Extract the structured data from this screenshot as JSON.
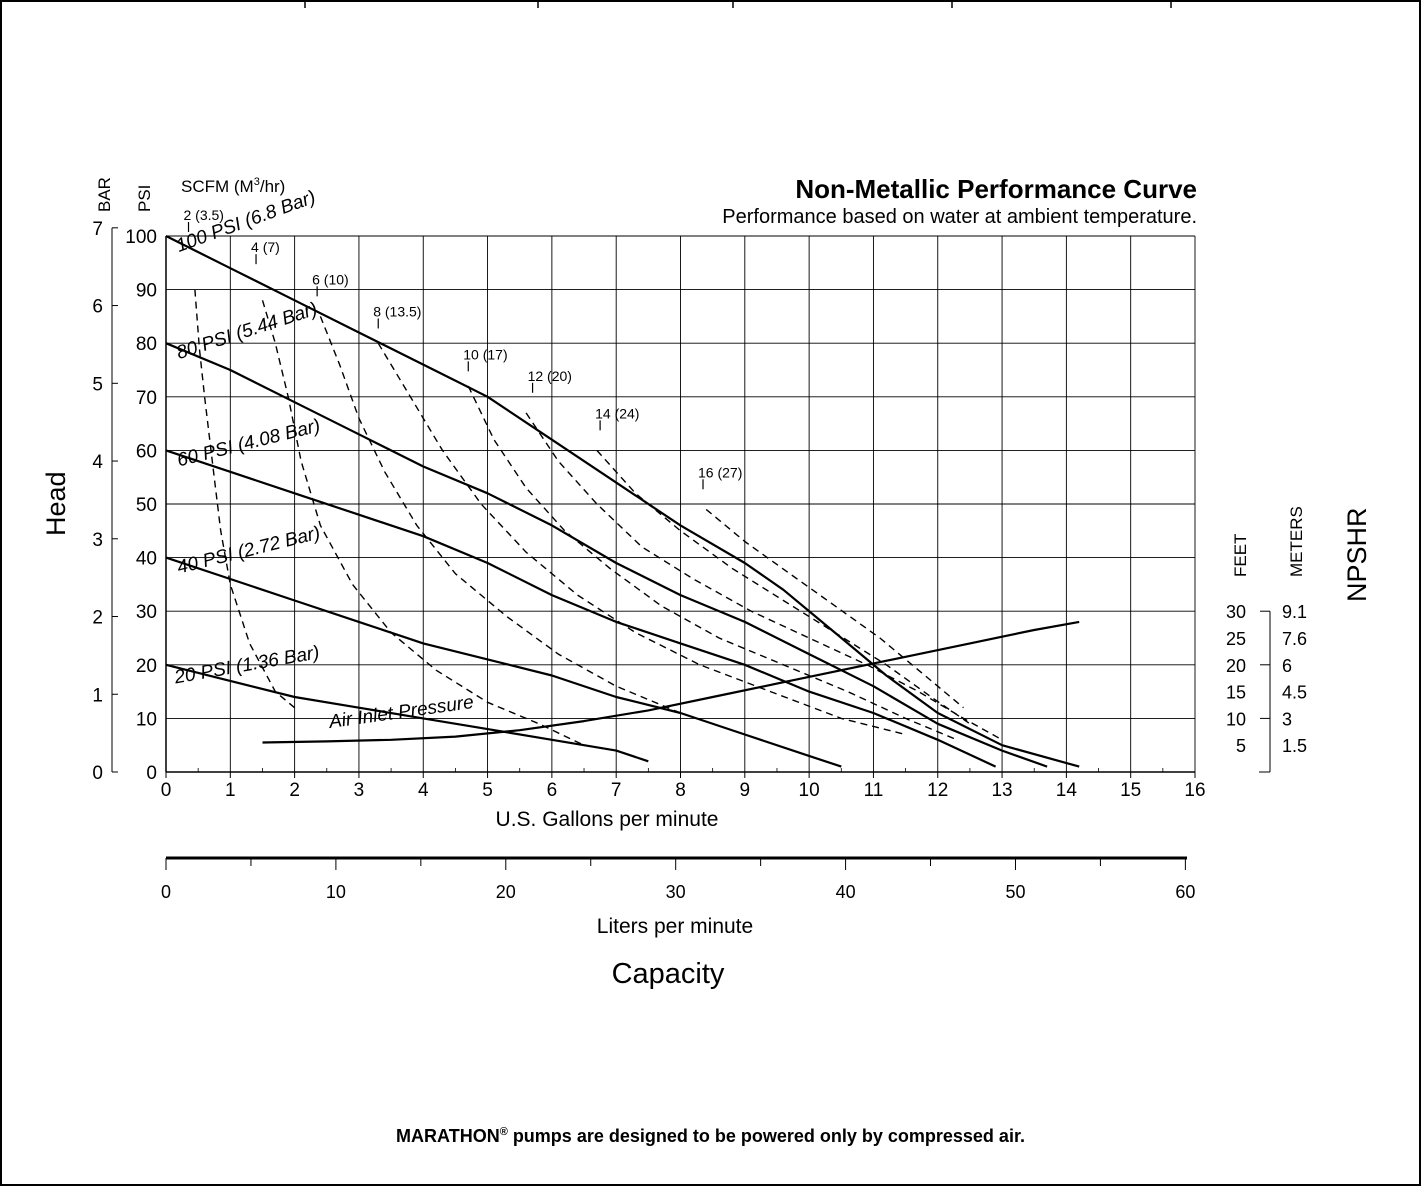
{
  "chart_data": {
    "type": "line",
    "title": "Non-Metallic Performance Curve",
    "subtitle": "Performance based on water at ambient temperature.",
    "xlabel": "U.S. Gallons per minute",
    "x2label": "Liters per minute",
    "capacity_label": "Capacity",
    "ylabel": "Head",
    "y_unit_bar": "BAR",
    "y_unit_psi": "PSI",
    "scfm_label": "SCFM (M",
    "scfm_sup": "3",
    "scfm_suffix": "/hr)",
    "npshr_label": "NPSHR",
    "npshr_feet_label": "FEET",
    "npshr_meters_label": "METERS",
    "xlim": [
      0,
      16
    ],
    "ylim": [
      0,
      100
    ],
    "grid": true,
    "x_ticks": [
      "0",
      "1",
      "2",
      "3",
      "4",
      "5",
      "6",
      "7",
      "8",
      "9",
      "10",
      "11",
      "12",
      "13",
      "14",
      "15",
      "16"
    ],
    "psi_ticks": [
      "0",
      "10",
      "20",
      "30",
      "40",
      "50",
      "60",
      "70",
      "80",
      "90",
      "100"
    ],
    "bar_ticks": [
      "0",
      "1",
      "2",
      "3",
      "4",
      "5",
      "6",
      "7"
    ],
    "lpm_ticks": [
      "0",
      "10",
      "20",
      "30",
      "40",
      "50",
      "60"
    ],
    "npshr_feet_ticks": [
      "5",
      "10",
      "15",
      "20",
      "25",
      "30"
    ],
    "npshr_meter_ticks": [
      "1.5",
      "3",
      "4.5",
      "6",
      "7.6",
      "9.1"
    ],
    "series": [
      {
        "name": "100 PSI (6.8 Bar)",
        "style": "solid",
        "x": [
          0,
          1,
          2,
          3,
          4,
          5,
          6,
          7,
          8,
          9,
          9.6,
          10.4,
          11.2,
          12,
          13,
          14.2
        ],
        "y": [
          100,
          94,
          88,
          82,
          76,
          70,
          62,
          54,
          46,
          39,
          34,
          26,
          18,
          11,
          5,
          1
        ]
      },
      {
        "name": "80 PSI (5.44 Bar)",
        "style": "solid",
        "x": [
          0,
          1,
          2,
          3,
          4,
          5,
          6,
          7,
          8,
          9,
          10,
          11,
          12,
          13,
          13.7
        ],
        "y": [
          80,
          75,
          69,
          63,
          57,
          52,
          46,
          39,
          33,
          28,
          22,
          16,
          9,
          4,
          1
        ]
      },
      {
        "name": "60 PSI (4.08 Bar)",
        "style": "solid",
        "x": [
          0,
          1,
          2,
          3,
          4,
          5,
          6,
          7,
          8,
          9,
          10,
          11,
          12,
          12.9
        ],
        "y": [
          60,
          56,
          52,
          48,
          44,
          39,
          33,
          28,
          24,
          20,
          15,
          11,
          6,
          1
        ]
      },
      {
        "name": "40 PSI (2.72 Bar)",
        "style": "solid",
        "x": [
          0,
          1,
          2,
          3,
          4,
          5,
          6,
          7,
          8,
          9,
          10,
          10.5
        ],
        "y": [
          40,
          36,
          32,
          28,
          24,
          21,
          18,
          14,
          11,
          7,
          3,
          1
        ]
      },
      {
        "name": "20 PSI (1.36 Bar)",
        "style": "solid",
        "x": [
          0,
          1,
          2,
          3,
          4,
          5,
          6,
          7,
          7.5
        ],
        "y": [
          20,
          17,
          14,
          12,
          10,
          8,
          6,
          4,
          2
        ]
      },
      {
        "name": "Air Inlet Pressure",
        "style": "solid",
        "x": [
          1.5,
          2.5,
          3.5,
          4.5,
          5.5,
          6.5,
          7.5,
          8.5,
          9.5,
          10.5,
          11.5,
          12.5,
          13.5,
          14.2
        ],
        "y": [
          5.5,
          5.7,
          6,
          6.6,
          7.8,
          9.5,
          11.5,
          14,
          16.5,
          19,
          21.5,
          24,
          26.5,
          28
        ]
      },
      {
        "name": "2 (3.5)",
        "style": "dashed",
        "x": [
          0.45,
          0.52,
          0.6,
          0.75,
          0.85,
          1.0,
          1.3,
          1.7,
          2.0
        ],
        "y": [
          90,
          79,
          70,
          55,
          45,
          35,
          24,
          15,
          12
        ]
      },
      {
        "name": "4 (7)",
        "style": "dashed",
        "x": [
          1.5,
          1.7,
          1.9,
          2.1,
          2.4,
          2.9,
          3.5,
          4.2,
          5.0,
          5.8,
          6.5
        ],
        "y": [
          88,
          80,
          70,
          58,
          46,
          35,
          26,
          19,
          13,
          9,
          5
        ]
      },
      {
        "name": "6 (10)",
        "style": "dashed",
        "x": [
          2.4,
          2.7,
          3.0,
          3.4,
          3.9,
          4.5,
          5.3,
          6.1,
          7.0,
          8.0,
          9.0
        ],
        "y": [
          85,
          76,
          66,
          56,
          46,
          37,
          29,
          22,
          16,
          11,
          7
        ]
      },
      {
        "name": "8 (13.5)",
        "style": "dashed",
        "x": [
          3.3,
          3.8,
          4.3,
          4.9,
          5.6,
          6.4,
          7.3,
          8.3,
          9.4,
          10.5,
          11.5
        ],
        "y": [
          80,
          70,
          60,
          50,
          41,
          33,
          26,
          20,
          15,
          10,
          7
        ]
      },
      {
        "name": "10 (17)",
        "style": "dashed",
        "x": [
          4.7,
          5.1,
          5.6,
          6.2,
          6.9,
          7.7,
          8.6,
          9.6,
          10.6,
          11.5,
          12.3
        ],
        "y": [
          72,
          62,
          53,
          45,
          38,
          31,
          25,
          20,
          15,
          10,
          6
        ]
      },
      {
        "name": "12 (20)",
        "style": "dashed",
        "x": [
          5.6,
          6.1,
          6.7,
          7.4,
          8.2,
          9.1,
          10.0,
          10.9,
          11.7,
          12.4,
          13.0
        ],
        "y": [
          67,
          58,
          50,
          42,
          36,
          30,
          25,
          20,
          15,
          10,
          6
        ]
      },
      {
        "name": "14 (24)",
        "style": "dashed",
        "x": [
          6.7,
          7.3,
          8.0,
          8.8,
          9.6,
          10.4,
          11.2,
          11.9,
          12.5
        ],
        "y": [
          60,
          52,
          45,
          38,
          32,
          26,
          20,
          14,
          9
        ]
      },
      {
        "name": "16 (27)",
        "style": "dashed",
        "x": [
          8.4,
          9.0,
          9.7,
          10.4,
          11.1,
          11.8,
          12.4
        ],
        "y": [
          49,
          43,
          37,
          31,
          25,
          18,
          12
        ]
      }
    ],
    "scfm_labels": [
      {
        "text": "2 (3.5)",
        "x": 0.35,
        "y": 100
      },
      {
        "text": "4 (7)",
        "x": 1.4,
        "y": 94
      },
      {
        "text": "6 (10)",
        "x": 2.35,
        "y": 88
      },
      {
        "text": "8 (13.5)",
        "x": 3.3,
        "y": 82
      },
      {
        "text": "10 (17)",
        "x": 4.7,
        "y": 74
      },
      {
        "text": "12 (20)",
        "x": 5.7,
        "y": 70
      },
      {
        "text": "14 (24)",
        "x": 6.75,
        "y": 63
      },
      {
        "text": "16 (27)",
        "x": 8.35,
        "y": 52
      }
    ],
    "psi_curve_labels": [
      {
        "text": "100 PSI (6.8 Bar)",
        "x": 0.2,
        "y": 97,
        "angle": -20
      },
      {
        "text": "80 PSI (5.44 Bar)",
        "x": 0.2,
        "y": 77,
        "angle": -18
      },
      {
        "text": "60 PSI (4.08 Bar)",
        "x": 0.2,
        "y": 57,
        "angle": -14
      },
      {
        "text": "40 PSI (2.72 Bar)",
        "x": 0.2,
        "y": 37,
        "angle": -14
      },
      {
        "text": "20 PSI (1.36 Bar)",
        "x": 0.15,
        "y": 16.5,
        "angle": -10
      },
      {
        "text": "Air Inlet Pressure",
        "x": 2.55,
        "y": 8.2,
        "angle": -8
      }
    ]
  },
  "footer": {
    "brand": "MARATHON",
    "reg_mark": "®",
    "note": " pumps are designed to be powered only by compressed air."
  }
}
